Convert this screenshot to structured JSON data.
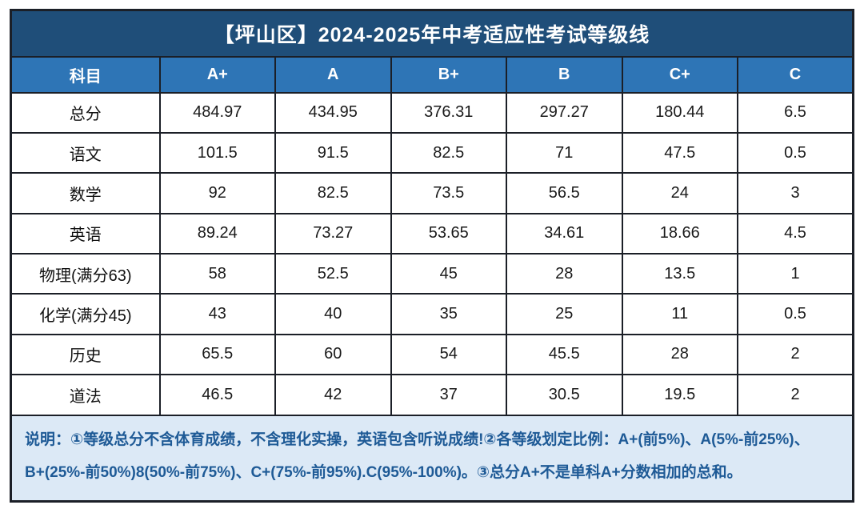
{
  "title": "【坪山区】2024-2025年中考适应性考试等级线",
  "table": {
    "headers": [
      "科目",
      "A+",
      "A",
      "B+",
      "B",
      "C+",
      "C"
    ],
    "rows": [
      {
        "subject": "总分",
        "values": [
          "484.97",
          "434.95",
          "376.31",
          "297.27",
          "180.44",
          "6.5"
        ]
      },
      {
        "subject": "语文",
        "values": [
          "101.5",
          "91.5",
          "82.5",
          "71",
          "47.5",
          "0.5"
        ]
      },
      {
        "subject": "数学",
        "values": [
          "92",
          "82.5",
          "73.5",
          "56.5",
          "24",
          "3"
        ]
      },
      {
        "subject": "英语",
        "values": [
          "89.24",
          "73.27",
          "53.65",
          "34.61",
          "18.66",
          "4.5"
        ]
      },
      {
        "subject": "物理(满分63)",
        "values": [
          "58",
          "52.5",
          "45",
          "28",
          "13.5",
          "1"
        ]
      },
      {
        "subject": "化学(满分45)",
        "values": [
          "43",
          "40",
          "35",
          "25",
          "11",
          "0.5"
        ]
      },
      {
        "subject": "历史",
        "values": [
          "65.5",
          "60",
          "54",
          "45.5",
          "28",
          "2"
        ]
      },
      {
        "subject": "道法",
        "values": [
          "46.5",
          "42",
          "37",
          "30.5",
          "19.5",
          "2"
        ]
      }
    ]
  },
  "footnote": {
    "line1": "说明：①等级总分不含体育成绩，不含理化实操，英语包含听说成绩!②各等级划定比例：A+(前5%)、A(5%-前25%)、",
    "line2": "B+(25%-前50%)8(50%-前75%)、C+(75%-前95%).C(95%-100%)。③总分A+不是单科A+分数相加的总和。"
  },
  "colors": {
    "title_bg": "#1F4E79",
    "header_bg": "#2E75B6",
    "note_bg": "#DCE9F6",
    "note_text": "#1E5A96",
    "border": "#1B1F27"
  },
  "chart_data": {
    "type": "table",
    "title": "【坪山区】2024-2025年中考适应性考试等级线",
    "columns": [
      "科目",
      "A+",
      "A",
      "B+",
      "B",
      "C+",
      "C"
    ],
    "rows": [
      [
        "总分",
        484.97,
        434.95,
        376.31,
        297.27,
        180.44,
        6.5
      ],
      [
        "语文",
        101.5,
        91.5,
        82.5,
        71,
        47.5,
        0.5
      ],
      [
        "数学",
        92,
        82.5,
        73.5,
        56.5,
        24,
        3
      ],
      [
        "英语",
        89.24,
        73.27,
        53.65,
        34.61,
        18.66,
        4.5
      ],
      [
        "物理(满分63)",
        58,
        52.5,
        45,
        28,
        13.5,
        1
      ],
      [
        "化学(满分45)",
        43,
        40,
        35,
        25,
        11,
        0.5
      ],
      [
        "历史",
        65.5,
        60,
        54,
        45.5,
        28,
        2
      ],
      [
        "道法",
        46.5,
        42,
        37,
        30.5,
        19.5,
        2
      ]
    ],
    "notes": [
      "说明：①等级总分不含体育成绩，不含理化实操，英语包含听说成绩!②各等级划定比例：A+(前5%)、A(5%-前25%)、",
      "B+(25%-前50%)8(50%-前75%)、C+(75%-前95%).C(95%-100%)。③总分A+不是单科A+分数相加的总和。"
    ],
    "layout_hints": {
      "grid": true,
      "header_position": "top",
      "note_position": "bottom"
    }
  }
}
